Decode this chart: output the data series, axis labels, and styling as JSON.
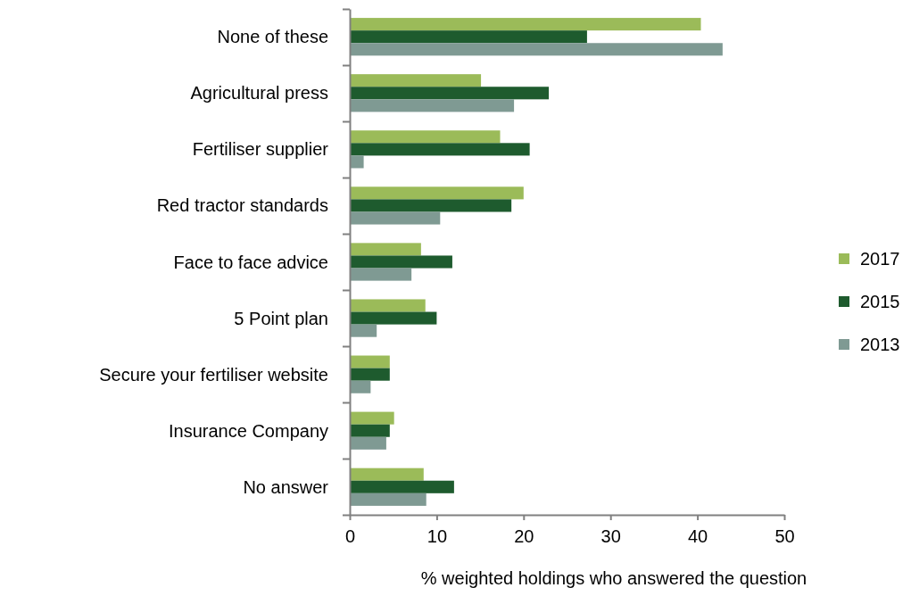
{
  "chart_data": {
    "type": "bar",
    "orientation": "horizontal",
    "xlabel": "% weighted holdings  who answered the question",
    "categories": [
      "None of these",
      "Agricultural press",
      "Fertiliser supplier",
      "Red tractor standards",
      "Face to face advice",
      "5 Point plan",
      "Secure your fertiliser website",
      "Insurance Company",
      "No answer"
    ],
    "series": [
      {
        "name": "2017",
        "color": "#9bbb59",
        "values": [
          40.4,
          15.1,
          17.3,
          20.0,
          8.2,
          8.7,
          4.6,
          5.1,
          8.5
        ]
      },
      {
        "name": "2015",
        "color": "#1e5b2e",
        "values": [
          27.3,
          22.9,
          20.7,
          18.6,
          11.8,
          10.0,
          4.6,
          4.6,
          12.0
        ]
      },
      {
        "name": "2013",
        "color": "#7f9a93",
        "values": [
          42.9,
          18.9,
          1.6,
          10.4,
          7.1,
          3.1,
          2.4,
          4.2,
          8.8
        ]
      }
    ],
    "xlim": [
      0,
      50
    ],
    "xticks": [
      0,
      10,
      20,
      30,
      40,
      50
    ],
    "grid": false,
    "legend": "right"
  }
}
